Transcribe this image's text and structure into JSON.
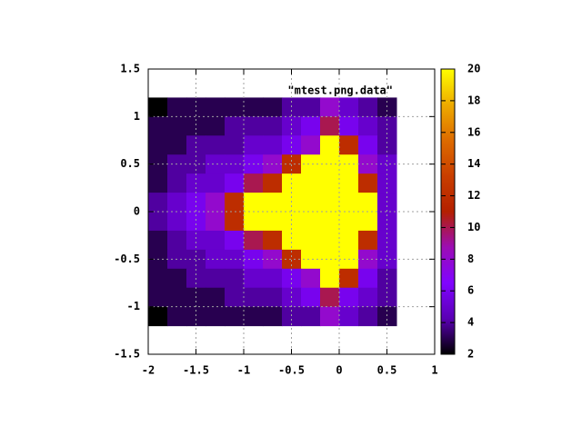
{
  "chart_data": {
    "type": "heatmap",
    "legend_label": "\"mtest.png.data\"",
    "x": [
      -1.9,
      -1.7,
      -1.5,
      -1.3,
      -1.1,
      -0.9,
      -0.7,
      -0.5,
      -0.3,
      -0.1,
      0.1,
      0.3,
      0.5
    ],
    "y": [
      1.1,
      0.9,
      0.7,
      0.5,
      0.3,
      0.1,
      -0.1,
      -0.3,
      -0.5,
      -0.7,
      -0.9,
      -1.1
    ],
    "z": [
      [
        2,
        3,
        3,
        3,
        3,
        3,
        3,
        4,
        4,
        8,
        5,
        4,
        3
      ],
      [
        3,
        3,
        3,
        3,
        4,
        4,
        4,
        5,
        6,
        10,
        6,
        5,
        4
      ],
      [
        3,
        3,
        4,
        4,
        4,
        5,
        5,
        6,
        8,
        20,
        12,
        6,
        4
      ],
      [
        3,
        4,
        4,
        5,
        5,
        6,
        8,
        12,
        20,
        20,
        20,
        8,
        5
      ],
      [
        3,
        4,
        5,
        5,
        6,
        10,
        12,
        20,
        20,
        20,
        20,
        12,
        5
      ],
      [
        4,
        5,
        6,
        8,
        12,
        20,
        20,
        20,
        20,
        20,
        20,
        20,
        5
      ],
      [
        4,
        5,
        6,
        8,
        12,
        20,
        20,
        20,
        20,
        20,
        20,
        20,
        5
      ],
      [
        3,
        4,
        5,
        5,
        6,
        10,
        12,
        20,
        20,
        20,
        20,
        12,
        5
      ],
      [
        3,
        4,
        4,
        5,
        5,
        6,
        8,
        12,
        20,
        20,
        20,
        8,
        5
      ],
      [
        3,
        3,
        4,
        4,
        4,
        5,
        5,
        6,
        8,
        20,
        12,
        6,
        4
      ],
      [
        3,
        3,
        3,
        3,
        4,
        4,
        4,
        5,
        6,
        10,
        6,
        5,
        4
      ],
      [
        2,
        3,
        3,
        3,
        3,
        3,
        3,
        4,
        4,
        8,
        5,
        4,
        3
      ]
    ],
    "xlim": [
      -2,
      1
    ],
    "xticks": [
      -2,
      -1.5,
      -1,
      -0.5,
      0,
      0.5,
      1
    ],
    "ylim": [
      -1.5,
      1.5
    ],
    "yticks": [
      -1.5,
      -1,
      -0.5,
      0,
      0.5,
      1,
      1.5
    ],
    "zlim": [
      2,
      20
    ],
    "zticks": [
      2,
      4,
      6,
      8,
      10,
      12,
      14,
      16,
      18,
      20
    ],
    "grid": true,
    "colormap": [
      "#000000",
      "#5a00b4",
      "#8004ff",
      "#9c0db4",
      "#b42000",
      "#c93e00",
      "#dd6b00",
      "#eeab00",
      "#ffff00"
    ]
  }
}
